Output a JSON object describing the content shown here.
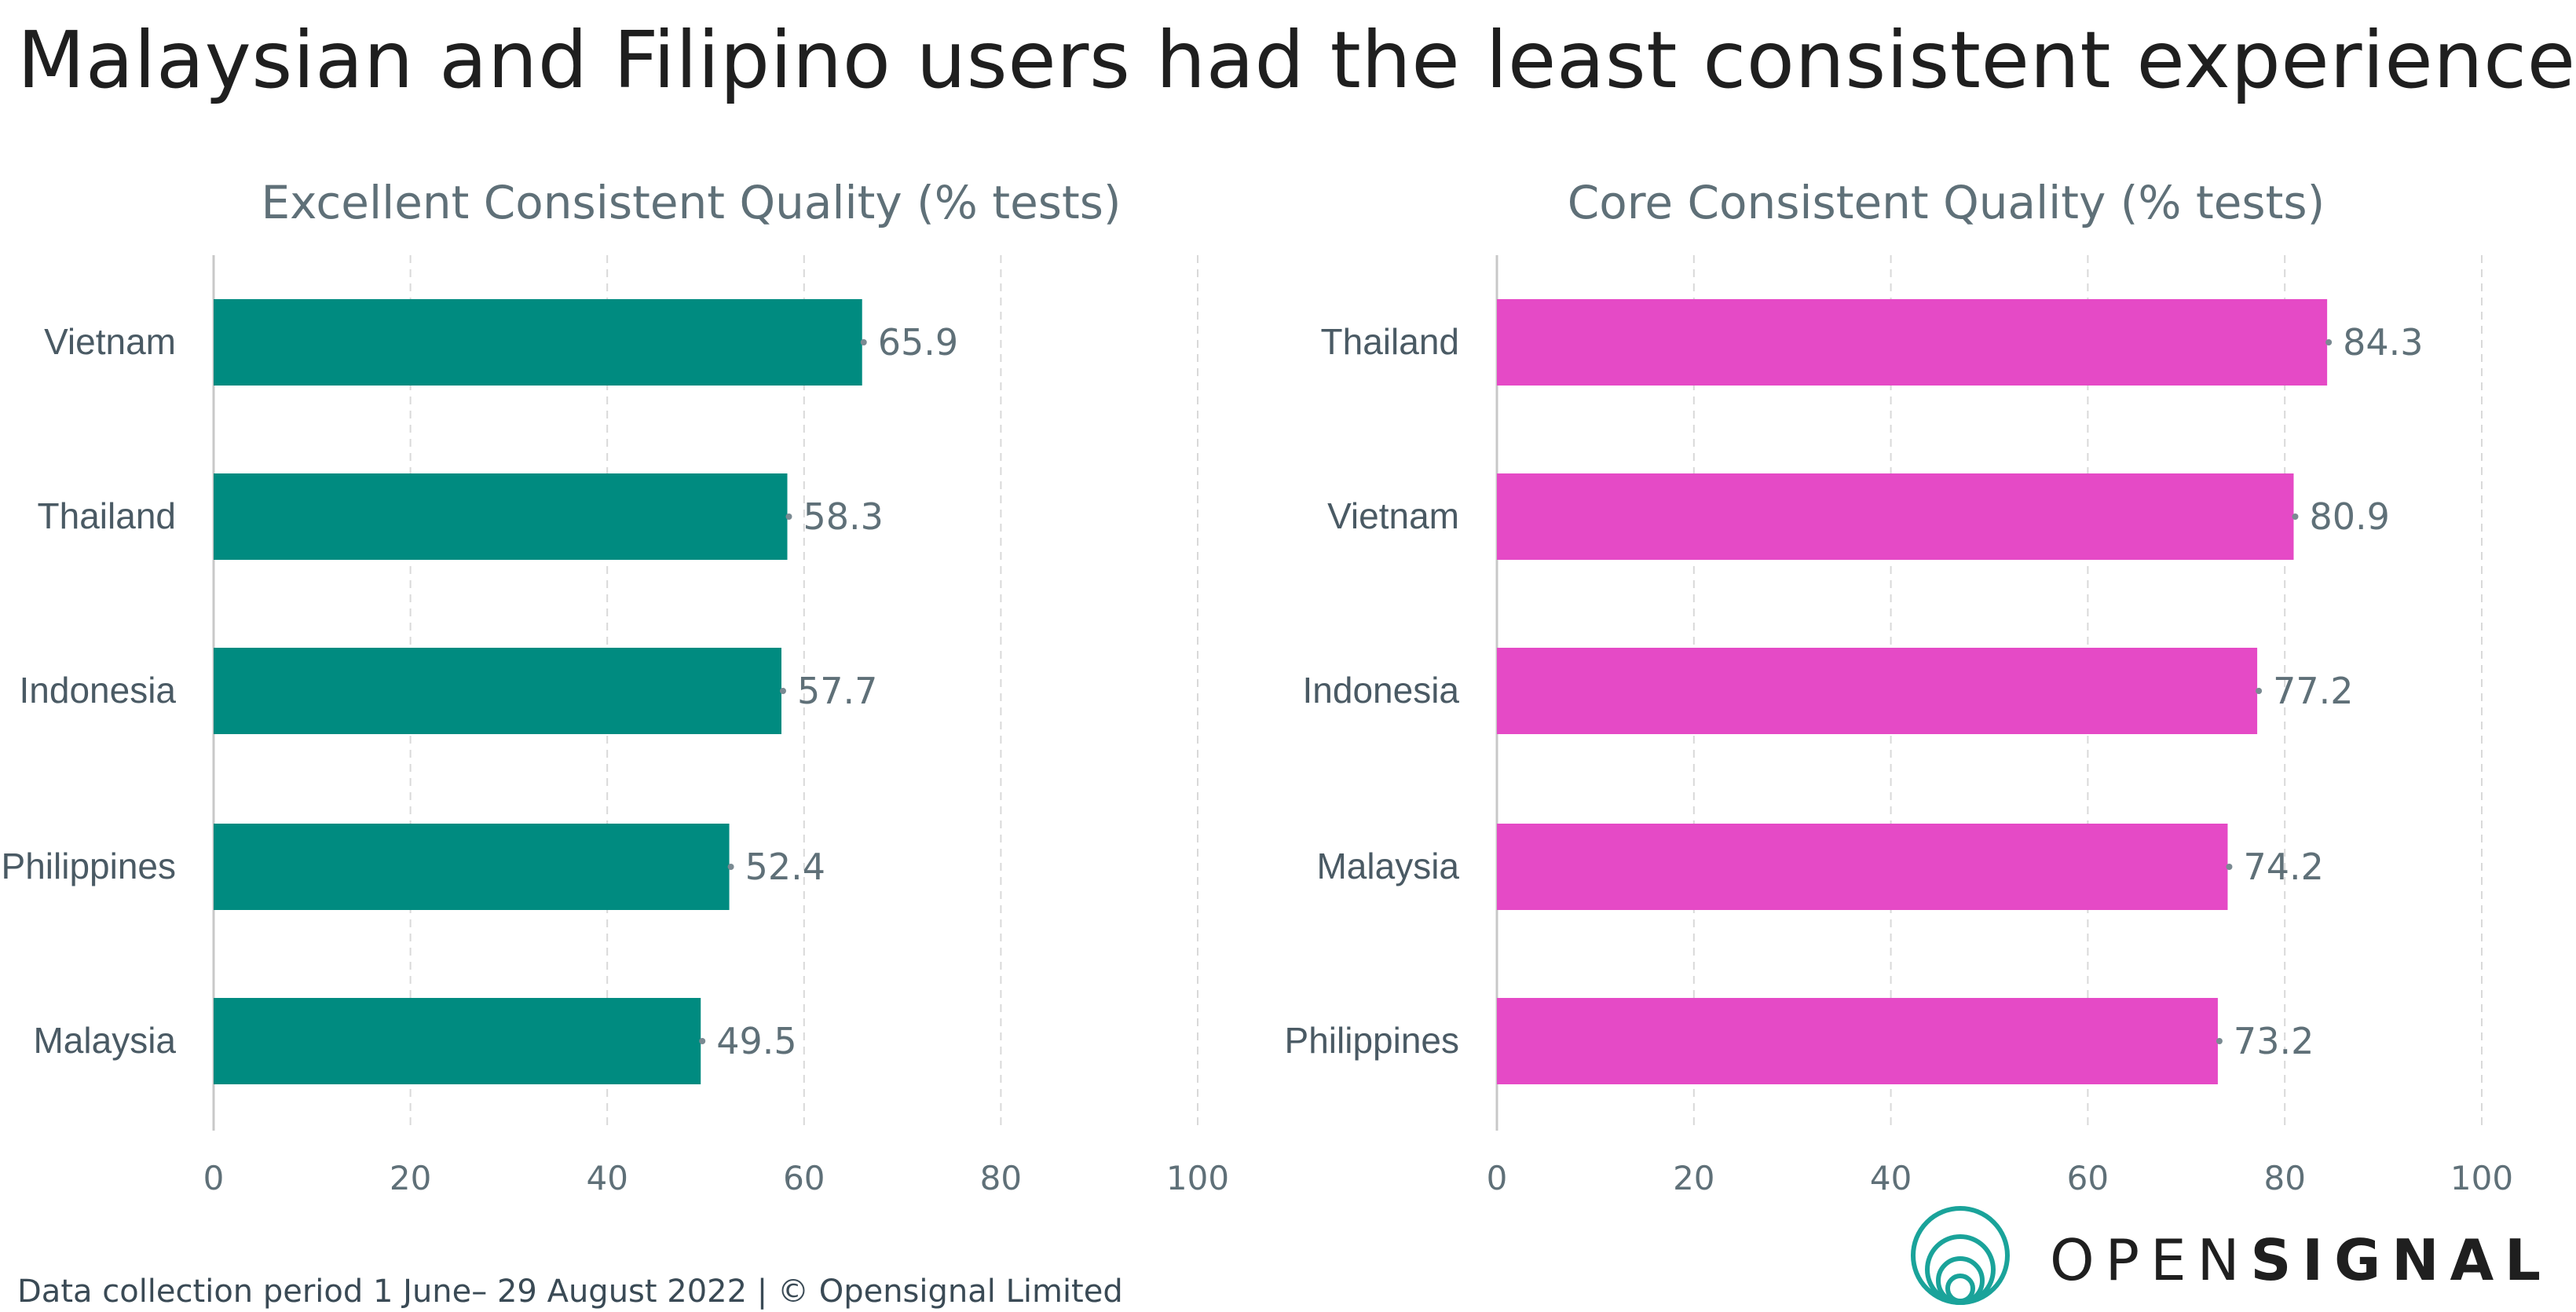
{
  "title": "Malaysian and Filipino users had the least consistent experience",
  "footer": {
    "note": "Data collection period 1 June– 29 August 2022  |  © Opensignal Limited"
  },
  "logo": {
    "text_light": "OPEN",
    "text_bold": "SIGNAL"
  },
  "colors": {
    "left_bar": "#008b80",
    "right_bar": "#e54ac6",
    "axis_text": "#5f7078",
    "grid": "#d9d9d9",
    "logo_ring": "#1aa39a"
  },
  "chart_data": [
    {
      "type": "bar",
      "orientation": "horizontal",
      "title": "Excellent Consistent Quality (% tests)",
      "categories": [
        "Vietnam",
        "Thailand",
        "Indonesia",
        "Philippines",
        "Malaysia"
      ],
      "values": [
        65.9,
        58.3,
        57.7,
        52.4,
        49.5
      ],
      "value_labels": [
        "65.9",
        "58.3",
        "57.7",
        "52.4",
        "49.5"
      ],
      "xlim": [
        0,
        100
      ],
      "xticks": [
        "0",
        "20",
        "40",
        "60",
        "80",
        "100"
      ],
      "grid": true,
      "color": "#008b80"
    },
    {
      "type": "bar",
      "orientation": "horizontal",
      "title": "Core Consistent Quality (% tests)",
      "categories": [
        "Thailand",
        "Vietnam",
        "Indonesia",
        "Malaysia",
        "Philippines"
      ],
      "values": [
        84.3,
        80.9,
        77.2,
        74.2,
        73.2
      ],
      "value_labels": [
        "84.3",
        "80.9",
        "77.2",
        "74.2",
        "73.2"
      ],
      "xlim": [
        0,
        100
      ],
      "xticks": [
        "0",
        "20",
        "40",
        "60",
        "80",
        "100"
      ],
      "grid": true,
      "color": "#e54ac6"
    }
  ]
}
